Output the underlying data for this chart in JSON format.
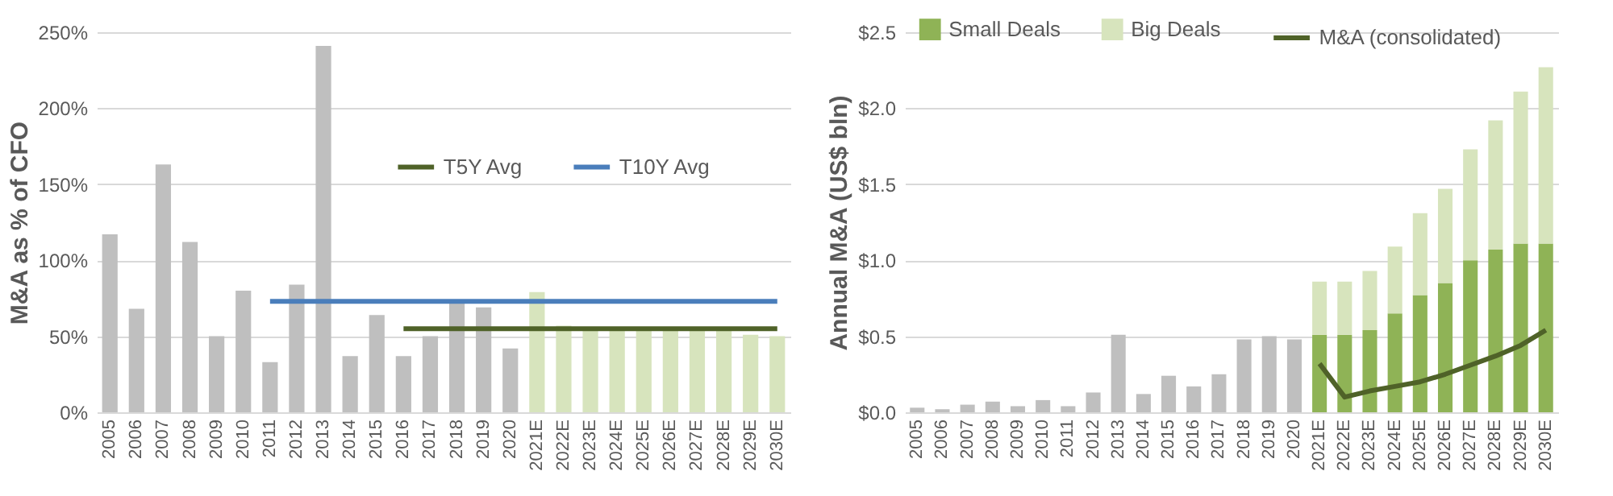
{
  "chart_data": [
    {
      "type": "bar",
      "ylabel": "M&A as % of CFO",
      "categories": [
        "2005",
        "2006",
        "2007",
        "2008",
        "2009",
        "2010",
        "2011",
        "2012",
        "2013",
        "2014",
        "2015",
        "2016",
        "2017",
        "2018",
        "2019",
        "2020",
        "2021E",
        "2022E",
        "2023E",
        "2024E",
        "2025E",
        "2026E",
        "2027E",
        "2028E",
        "2029E",
        "2030E"
      ],
      "series": [
        {
          "values": [
            117,
            68,
            163,
            112,
            50,
            80,
            33,
            84,
            241,
            37,
            64,
            37,
            50,
            73,
            69,
            42,
            79,
            57,
            55,
            55,
            55,
            55,
            55,
            55,
            51,
            50
          ],
          "colors": [
            "#bfbfbf",
            "#bfbfbf",
            "#bfbfbf",
            "#bfbfbf",
            "#bfbfbf",
            "#bfbfbf",
            "#bfbfbf",
            "#bfbfbf",
            "#bfbfbf",
            "#bfbfbf",
            "#bfbfbf",
            "#bfbfbf",
            "#bfbfbf",
            "#bfbfbf",
            "#bfbfbf",
            "#bfbfbf",
            "#d7e4bd",
            "#d7e4bd",
            "#d7e4bd",
            "#d7e4bd",
            "#d7e4bd",
            "#d7e4bd",
            "#d7e4bd",
            "#d7e4bd",
            "#d7e4bd",
            "#d7e4bd"
          ]
        },
        {
          "name": "T5Y Avg",
          "type": "line",
          "color": "#4f6228",
          "values": [
            null,
            null,
            null,
            null,
            null,
            null,
            null,
            null,
            null,
            null,
            null,
            55,
            55,
            55,
            55,
            55,
            55,
            55,
            55,
            55,
            55,
            55,
            55,
            55,
            55,
            55
          ]
        },
        {
          "name": "T10Y Avg",
          "type": "line",
          "color": "#4a7ebb",
          "values": [
            null,
            null,
            null,
            null,
            null,
            null,
            73,
            73,
            73,
            73,
            73,
            73,
            73,
            73,
            73,
            73,
            73,
            73,
            73,
            73,
            73,
            73,
            73,
            73,
            73,
            73
          ]
        }
      ],
      "ylim": [
        0,
        250
      ],
      "yticks": [
        {
          "value": 0,
          "label": "0%"
        },
        {
          "value": 50,
          "label": "50%"
        },
        {
          "value": 100,
          "label": "100%"
        },
        {
          "value": 150,
          "label": "150%"
        },
        {
          "value": 200,
          "label": "200%"
        },
        {
          "value": 250,
          "label": "250%"
        }
      ],
      "grid": "y",
      "legend": "top right"
    },
    {
      "type": "bar",
      "ylabel": "Annual M&A (US$ bln)",
      "categories": [
        "2005",
        "2006",
        "2007",
        "2008",
        "2009",
        "2010",
        "2011",
        "2012",
        "2013",
        "2014",
        "2015",
        "2016",
        "2017",
        "2018",
        "2019",
        "2020",
        "2021E",
        "2022E",
        "2023E",
        "2024E",
        "2025E",
        "2026E",
        "2027E",
        "2028E",
        "2029E",
        "2030E"
      ],
      "stacked": true,
      "series": [
        {
          "color": "#bfbfbf",
          "values": [
            0.03,
            0.02,
            0.05,
            0.07,
            0.04,
            0.08,
            0.04,
            0.13,
            0.51,
            0.12,
            0.24,
            0.17,
            0.25,
            0.48,
            0.5,
            0.48,
            null,
            null,
            null,
            null,
            null,
            null,
            null,
            null,
            null,
            null
          ]
        },
        {
          "name": "Small Deals",
          "color": "#8fb356",
          "values": [
            null,
            null,
            null,
            null,
            null,
            null,
            null,
            null,
            null,
            null,
            null,
            null,
            null,
            null,
            null,
            null,
            0.51,
            0.51,
            0.54,
            0.65,
            0.77,
            0.85,
            1.0,
            1.07,
            1.11,
            1.11
          ]
        },
        {
          "name": "Big Deals",
          "color": "#d7e4bd",
          "values": [
            null,
            null,
            null,
            null,
            null,
            null,
            null,
            null,
            null,
            null,
            null,
            null,
            null,
            null,
            null,
            null,
            0.35,
            0.35,
            0.39,
            0.44,
            0.54,
            0.62,
            0.73,
            0.85,
            1.0,
            1.16
          ]
        },
        {
          "name": "M&A (consolidated)",
          "type": "line",
          "color": "#4f6228",
          "values": [
            null,
            null,
            null,
            null,
            null,
            null,
            null,
            null,
            null,
            null,
            null,
            null,
            null,
            null,
            null,
            null,
            0.32,
            0.1,
            0.14,
            0.17,
            0.2,
            0.25,
            0.31,
            0.37,
            0.44,
            0.54
          ]
        }
      ],
      "ylim": [
        0,
        2.5
      ],
      "yticks": [
        {
          "value": 0,
          "label": "$0.0"
        },
        {
          "value": 0.5,
          "label": "$0.5"
        },
        {
          "value": 1,
          "label": "$1.0"
        },
        {
          "value": 1.5,
          "label": "$1.5"
        },
        {
          "value": 2,
          "label": "$2.0"
        },
        {
          "value": 2.5,
          "label": "$2.5"
        }
      ],
      "grid": "y",
      "legend": "top"
    }
  ]
}
